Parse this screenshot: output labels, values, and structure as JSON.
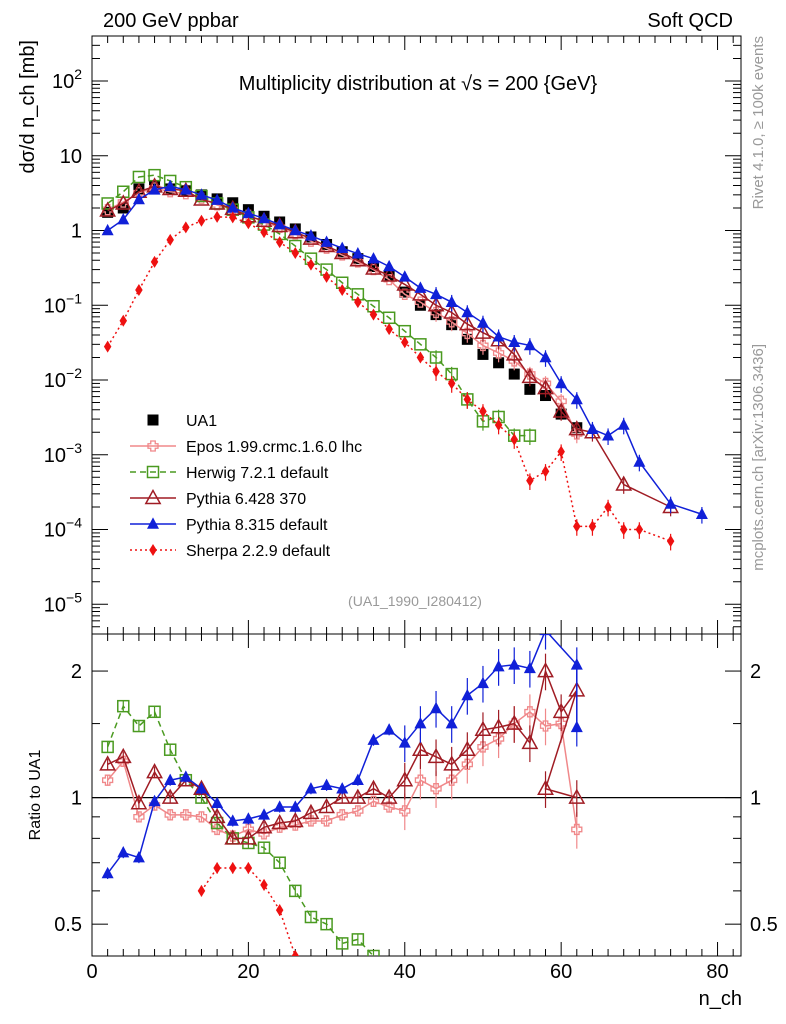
{
  "header": {
    "left": "200 GeV ppbar",
    "right": "Soft QCD"
  },
  "side_labels": {
    "rivet": "Rivet 4.1.0, ≥ 100k events",
    "mcplots": "mcplots.cern.ch [arXiv:1306.3436]"
  },
  "chart_data": {
    "type": "scatter",
    "title": "Multiplicity distribution at √s = 200 {GeV}",
    "analysis_id": "(UA1_1990_I280412)",
    "xlabel": "n_ch",
    "x_ticks": [
      "0",
      "20",
      "40",
      "60",
      "80"
    ],
    "xlim": [
      0,
      83
    ],
    "main": {
      "ylabel": "dσ/d n_ch [mb]",
      "yscale": "log",
      "ylim": [
        4e-06,
        400
      ],
      "y_ticks": [
        {
          "v": 100,
          "b": "10",
          "e": "2"
        },
        {
          "v": 10,
          "b": "10",
          "e": ""
        },
        {
          "v": 1,
          "b": "1",
          "e": ""
        },
        {
          "v": 0.1,
          "b": "10",
          "e": "−1"
        },
        {
          "v": 0.01,
          "b": "10",
          "e": "−2"
        },
        {
          "v": 0.001,
          "b": "10",
          "e": "−3"
        },
        {
          "v": 0.0001,
          "b": "10",
          "e": "−4"
        },
        {
          "v": 1e-05,
          "b": "10",
          "e": "−5"
        }
      ]
    },
    "ratio": {
      "ylabel": "Ratio to UA1",
      "yscale": "log",
      "ylim": [
        0.42,
        2.45
      ],
      "y_ticks": [
        "0.5",
        "1",
        "2"
      ],
      "reference": 1
    },
    "legend_position": "bottom-left",
    "series": [
      {
        "name": "UA1",
        "color": "#000000",
        "marker": "square-filled",
        "dash": "none",
        "x": [
          2,
          4,
          6,
          8,
          10,
          12,
          14,
          16,
          18,
          20,
          22,
          24,
          26,
          28,
          30,
          32,
          34,
          36,
          38,
          40,
          42,
          44,
          46,
          48,
          50,
          52,
          54,
          56,
          58,
          60,
          62
        ],
        "y": [
          1.75,
          2.0,
          3.6,
          3.9,
          3.6,
          3.4,
          3.0,
          2.65,
          2.35,
          1.9,
          1.55,
          1.3,
          1.05,
          0.82,
          0.65,
          0.52,
          0.42,
          0.33,
          0.25,
          0.15,
          0.1,
          0.075,
          0.055,
          0.035,
          0.022,
          0.017,
          0.012,
          0.0075,
          0.0062,
          0.0035,
          0.0023
        ],
        "ratio": null
      },
      {
        "name": "Epos 1.99.crmc.1.6.0 lhc",
        "color": "#f0888a",
        "marker": "plus-square",
        "dash": "none",
        "x": [
          2,
          4,
          6,
          8,
          10,
          12,
          14,
          16,
          18,
          20,
          22,
          24,
          26,
          28,
          30,
          32,
          34,
          36,
          38,
          40,
          42,
          44,
          46,
          48,
          50,
          52,
          54,
          56,
          58,
          60,
          62
        ],
        "y": [
          1.9,
          2.4,
          3.2,
          3.7,
          3.3,
          3.1,
          2.7,
          2.2,
          1.9,
          1.6,
          1.3,
          1.1,
          0.9,
          0.72,
          0.58,
          0.47,
          0.38,
          0.3,
          0.22,
          0.14,
          0.11,
          0.08,
          0.06,
          0.042,
          0.029,
          0.023,
          0.018,
          0.012,
          0.009,
          0.0052,
          0.0019
        ],
        "ratio": [
          1.1,
          1.22,
          0.9,
          0.96,
          0.91,
          0.91,
          0.9,
          0.84,
          0.81,
          0.84,
          0.82,
          0.85,
          0.86,
          0.88,
          0.88,
          0.91,
          0.93,
          0.98,
          0.95,
          0.93,
          1.1,
          1.05,
          1.1,
          1.2,
          1.32,
          1.38,
          1.5,
          1.6,
          1.48,
          1.5,
          0.84
        ],
        "ratio_x": [
          2,
          4,
          6,
          8,
          10,
          12,
          14,
          16,
          18,
          20,
          22,
          24,
          26,
          28,
          30,
          32,
          34,
          36,
          38,
          40,
          42,
          44,
          46,
          48,
          50,
          52,
          54,
          56,
          58,
          60,
          62
        ]
      },
      {
        "name": "Herwig 7.2.1 default",
        "color": "#4a9a20",
        "marker": "square-open",
        "dash": "dashed",
        "x": [
          2,
          4,
          6,
          8,
          10,
          12,
          14,
          16,
          18,
          20,
          22,
          24,
          26,
          28,
          30,
          32,
          34,
          36,
          38,
          40,
          42,
          44,
          46,
          48,
          50,
          52,
          54,
          56
        ],
        "y": [
          2.3,
          3.3,
          5.2,
          5.5,
          4.6,
          3.8,
          2.9,
          2.3,
          1.9,
          1.5,
          1.2,
          0.9,
          0.62,
          0.42,
          0.3,
          0.2,
          0.14,
          0.097,
          0.068,
          0.045,
          0.03,
          0.02,
          0.012,
          0.0055,
          0.0028,
          0.0032,
          0.0018,
          0.0018
        ],
        "ratio": [
          1.32,
          1.65,
          1.48,
          1.6,
          1.3,
          1.1,
          1.0,
          0.87,
          0.8,
          0.78,
          0.76,
          0.7,
          0.6,
          0.52,
          0.5,
          0.45,
          0.46,
          0.42
        ],
        "ratio_x": [
          2,
          4,
          6,
          8,
          10,
          12,
          14,
          16,
          18,
          20,
          22,
          24,
          26,
          28,
          30,
          32,
          34,
          36
        ]
      },
      {
        "name": "Pythia 6.428 370",
        "color": "#a01c24",
        "marker": "triangle-open",
        "dash": "none",
        "x": [
          2,
          4,
          6,
          8,
          10,
          12,
          14,
          16,
          18,
          20,
          22,
          24,
          26,
          28,
          30,
          32,
          34,
          36,
          38,
          40,
          42,
          44,
          46,
          48,
          50,
          52,
          54,
          56,
          58,
          60,
          62,
          64,
          68,
          74
        ],
        "y": [
          1.85,
          2.3,
          3.3,
          3.9,
          3.6,
          3.4,
          2.6,
          2.3,
          1.95,
          1.55,
          1.35,
          1.15,
          0.95,
          0.78,
          0.62,
          0.5,
          0.4,
          0.31,
          0.25,
          0.19,
          0.14,
          0.1,
          0.08,
          0.056,
          0.043,
          0.034,
          0.022,
          0.011,
          0.0078,
          0.0038,
          0.0022,
          0.002,
          0.0004,
          0.0002
        ],
        "ratio": [
          1.2,
          1.25,
          0.97,
          1.15,
          1.0,
          1.1,
          1.05,
          0.9,
          0.8,
          0.8,
          0.85,
          0.87,
          0.88,
          0.92,
          0.95,
          1.0,
          1.0,
          1.05,
          1.0,
          1.1,
          1.3,
          1.25,
          1.2,
          1.3,
          1.45,
          1.47,
          1.5,
          1.35,
          2.0,
          1.6,
          1.8,
          1.05,
          1.0
        ],
        "ratio_x": [
          2,
          4,
          6,
          8,
          10,
          12,
          14,
          16,
          18,
          20,
          22,
          24,
          26,
          28,
          30,
          32,
          34,
          36,
          38,
          40,
          42,
          44,
          46,
          48,
          50,
          52,
          54,
          56,
          58,
          60,
          62,
          58,
          62
        ]
      },
      {
        "name": "Pythia 8.315 default",
        "color": "#1020d8",
        "marker": "triangle-filled",
        "dash": "none",
        "x": [
          2,
          4,
          6,
          8,
          10,
          12,
          14,
          16,
          18,
          20,
          22,
          24,
          26,
          28,
          30,
          32,
          34,
          36,
          38,
          40,
          42,
          44,
          46,
          48,
          50,
          52,
          54,
          56,
          58,
          60,
          62,
          64,
          66,
          68,
          70,
          74,
          78
        ],
        "y": [
          1.0,
          1.4,
          2.6,
          3.5,
          3.9,
          3.5,
          3.0,
          2.55,
          2.0,
          1.7,
          1.45,
          1.2,
          1.0,
          0.85,
          0.7,
          0.58,
          0.49,
          0.42,
          0.33,
          0.24,
          0.17,
          0.14,
          0.11,
          0.08,
          0.058,
          0.038,
          0.032,
          0.029,
          0.02,
          0.009,
          0.0055,
          0.0022,
          0.0018,
          0.0025,
          0.0008,
          0.00022,
          0.00016
        ],
        "ratio": [
          0.66,
          0.74,
          0.72,
          0.98,
          1.1,
          1.12,
          1.05,
          0.97,
          0.88,
          0.89,
          0.91,
          0.95,
          0.95,
          1.05,
          1.07,
          1.05,
          1.1,
          1.37,
          1.45,
          1.35,
          1.5,
          1.63,
          1.5,
          1.75,
          1.87,
          2.05,
          2.07,
          2.03,
          2.5,
          2.07,
          1.47
        ],
        "ratio_x": [
          2,
          4,
          6,
          8,
          10,
          12,
          14,
          16,
          18,
          20,
          22,
          24,
          26,
          28,
          30,
          32,
          34,
          36,
          38,
          40,
          42,
          44,
          46,
          48,
          50,
          52,
          54,
          56,
          58,
          62,
          62
        ]
      },
      {
        "name": "Sherpa 2.2.9 default",
        "color": "#ee1111",
        "marker": "diamond-filled",
        "dash": "dotted",
        "x": [
          2,
          4,
          6,
          8,
          10,
          12,
          14,
          16,
          18,
          20,
          22,
          24,
          26,
          28,
          30,
          32,
          34,
          36,
          38,
          40,
          42,
          44,
          46,
          48,
          50,
          52,
          54,
          56,
          58,
          60,
          62,
          64,
          66,
          68,
          70,
          74
        ],
        "y": [
          0.028,
          0.062,
          0.16,
          0.38,
          0.75,
          1.1,
          1.35,
          1.52,
          1.5,
          1.25,
          0.95,
          0.7,
          0.5,
          0.35,
          0.24,
          0.16,
          0.11,
          0.075,
          0.048,
          0.032,
          0.02,
          0.013,
          0.009,
          0.0055,
          0.0038,
          0.0025,
          0.0016,
          0.00045,
          0.0006,
          0.0011,
          0.00011,
          0.00011,
          0.0002,
          0.0001,
          0.0001,
          7e-05
        ],
        "ratio": [
          0.6,
          0.68,
          0.68,
          0.68,
          0.62,
          0.54,
          0.42
        ],
        "ratio_x": [
          14,
          16,
          18,
          20,
          22,
          24,
          26
        ]
      }
    ]
  }
}
